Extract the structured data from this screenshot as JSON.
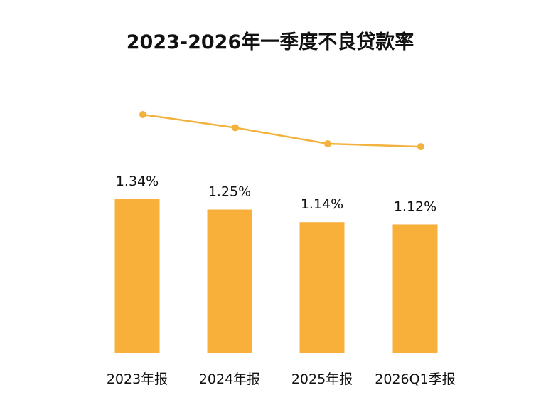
{
  "chart_data": {
    "type": "bar",
    "title": "2023-2026年一季度不良贷款率",
    "categories": [
      "2023年报",
      "2024年报",
      "2025年报",
      "2026Q1季报"
    ],
    "series": [
      {
        "values": [
          1.34,
          1.25,
          1.14,
          1.12
        ],
        "labels": [
          "1.34%",
          "1.25%",
          "1.14%",
          "1.12%"
        ]
      }
    ],
    "overlay_line": true,
    "ylim": [
      0,
      1.34
    ],
    "grid": false,
    "legend": "none",
    "bar_color": "#F9B03A",
    "line_color": "#F3B23E"
  }
}
